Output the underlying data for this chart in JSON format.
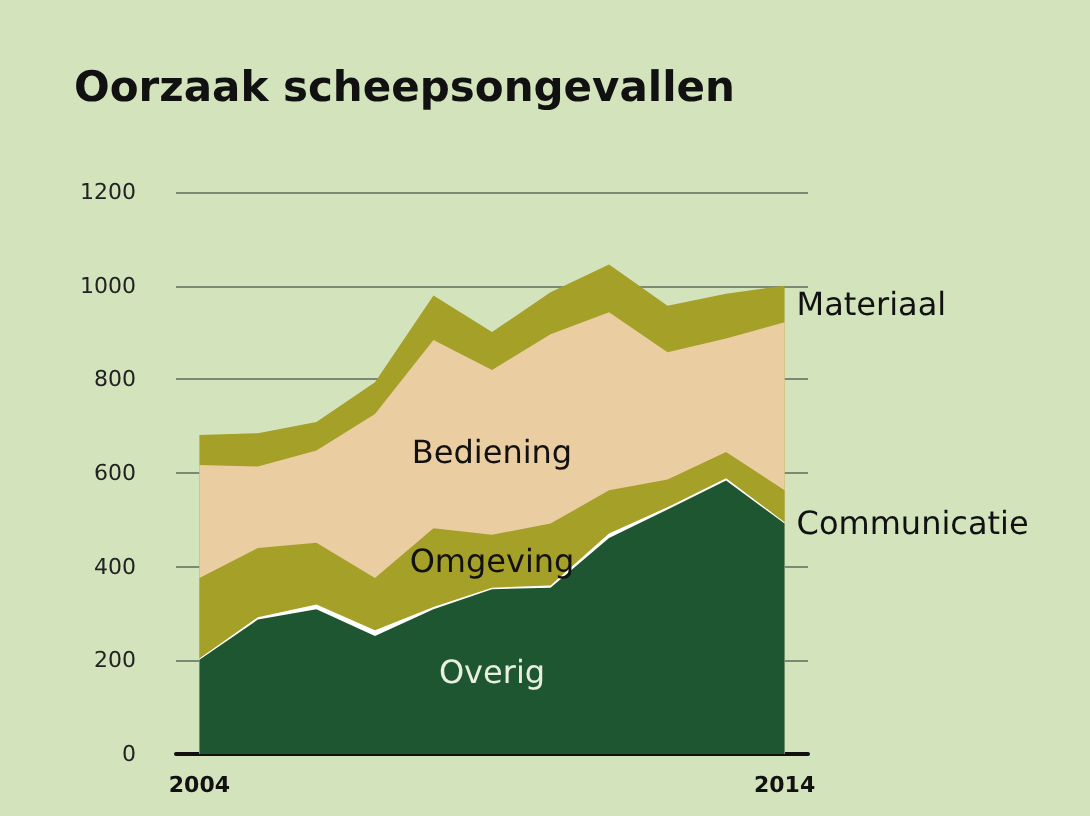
{
  "chart_data": {
    "type": "area",
    "title": "Oorzaak scheepsongevallen",
    "stacked": true,
    "x": [
      2004,
      2005,
      2006,
      2007,
      2008,
      2009,
      2010,
      2011,
      2012,
      2013,
      2014
    ],
    "xlim": [
      2003.6,
      2014.4
    ],
    "xticks": [
      2004,
      2014
    ],
    "ylim": [
      0,
      1200
    ],
    "yticks": [
      0,
      200,
      400,
      600,
      800,
      1000,
      1200
    ],
    "grid": "y",
    "legend": false,
    "series": [
      {
        "name": "Overig",
        "color": "#1e5631",
        "values": [
          201,
          287,
          309,
          252,
          309,
          352,
          355,
          461,
          522,
          584,
          492
        ]
      },
      {
        "name": "Communicatie",
        "color": "#ffffff",
        "values": [
          3,
          5,
          10,
          12,
          5,
          3,
          5,
          10,
          5,
          5,
          3
        ]
      },
      {
        "name": "Omgeving",
        "color": "#a5a027",
        "values": [
          172,
          148,
          132,
          112,
          168,
          113,
          132,
          92,
          59,
          56,
          68
        ]
      },
      {
        "name": "Bediening",
        "color": "#ebcda2",
        "values": [
          241,
          174,
          197,
          350,
          402,
          352,
          404,
          380,
          272,
          242,
          359
        ]
      },
      {
        "name": "Materiaal",
        "color": "#a5a027",
        "values": [
          64,
          71,
          61,
          68,
          95,
          81,
          90,
          102,
          99,
          96,
          78
        ]
      }
    ]
  }
}
